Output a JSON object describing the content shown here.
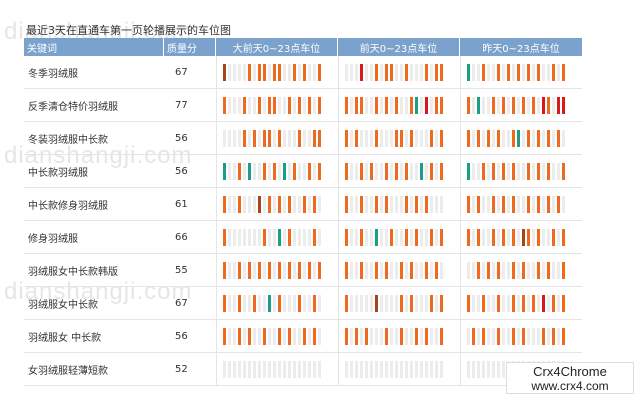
{
  "watermark": "dianshangji.com",
  "title": "最近3天在直通车第一页轮播展示的车位图",
  "headers": {
    "keyword": "关键词",
    "rank": "质量分",
    "day1": "大前天0~23点车位",
    "day2": "前天0~23点车位",
    "day3": "昨天0~23点车位"
  },
  "legend_colors": {
    "orange": "#ef6a1f",
    "green": "#1a9e86",
    "red": "#d7191c",
    "dark": "#a5461a",
    "empty": "#ececec"
  },
  "rows": [
    {
      "keyword": "冬季羽绒服",
      "rank": "67",
      "day1": "d....o.oo.oo..o.o..o",
      "day2": "...r..o.oo..o...o.oo",
      "day3": "g..o..o.o.o.o.o..o.o"
    },
    {
      "keyword": "反季清仓特价羽绒服",
      "rank": "77",
      "day1": "o...o..o.oo..o.o.o.o",
      "day2": "o.oo..o.o.o..og.r.oo",
      "day3": "o.g..o.o.o.o.o.ro.rr"
    },
    {
      "keyword": "冬装羽绒服中长款",
      "rank": "56",
      "day1": "....o.o.oo.o...o..oo",
      "day2": "o.o...o...oo.o...o.o",
      "day3": "o.o.o.o..og.o.o.o.o."
    },
    {
      "keyword": "中长款羽绒服",
      "rank": "56",
      "day1": "g..o.g..o.o.g.o..o.o",
      "day2": "o..o.o..o.o.o..g.o.o",
      "day3": "g..o.o.o.o..o.o.o..o"
    },
    {
      "keyword": "中长款修身羽绒服",
      "rank": "61",
      "day1": "o..o...d.o.o.o..o.o.",
      "day2": "o..o..o.o...o.o.o...",
      "day3": "o.o..o.o.o..o.o.o.o."
    },
    {
      "keyword": "修身羽绒服",
      "rank": "66",
      "day1": "o.......o..g.o....o.",
      "day2": "o..o..g..o..o.o..o.o",
      "day3": "o.o..o.o.o.do.o..o.o"
    },
    {
      "keyword": "羽绒服女中长款韩版",
      "rank": "55",
      "day1": "o..o.o.o.o.o.o.o.o.o",
      "day2": "o..o..o.o..o.o..o.o.",
      "day3": "..o.o.o..o.o..o.o..o"
    },
    {
      "keyword": "羽绒服女中长款",
      "rank": "67",
      "day1": "o..o..o..g.o...o..o.",
      "day2": "o.....d....o.o...o.o",
      "day3": "o..o..o..o.o.o.r.o.o"
    },
    {
      "keyword": "羽绒服女 中长款",
      "rank": "56",
      "day1": "o..o.o..o..o.o..o.o.",
      "day2": "o.o.o...o..o..o.o..o",
      "day3": ".o.o..o..o.o...o.o.o"
    },
    {
      "keyword": "女羽绒服轻薄短款",
      "rank": "52",
      "day1": "....................",
      "day2": "....................",
      "day3": "...................."
    }
  ],
  "corner_badge": {
    "line1": "Crx4Chrome",
    "line2": "www.crx4.com"
  }
}
